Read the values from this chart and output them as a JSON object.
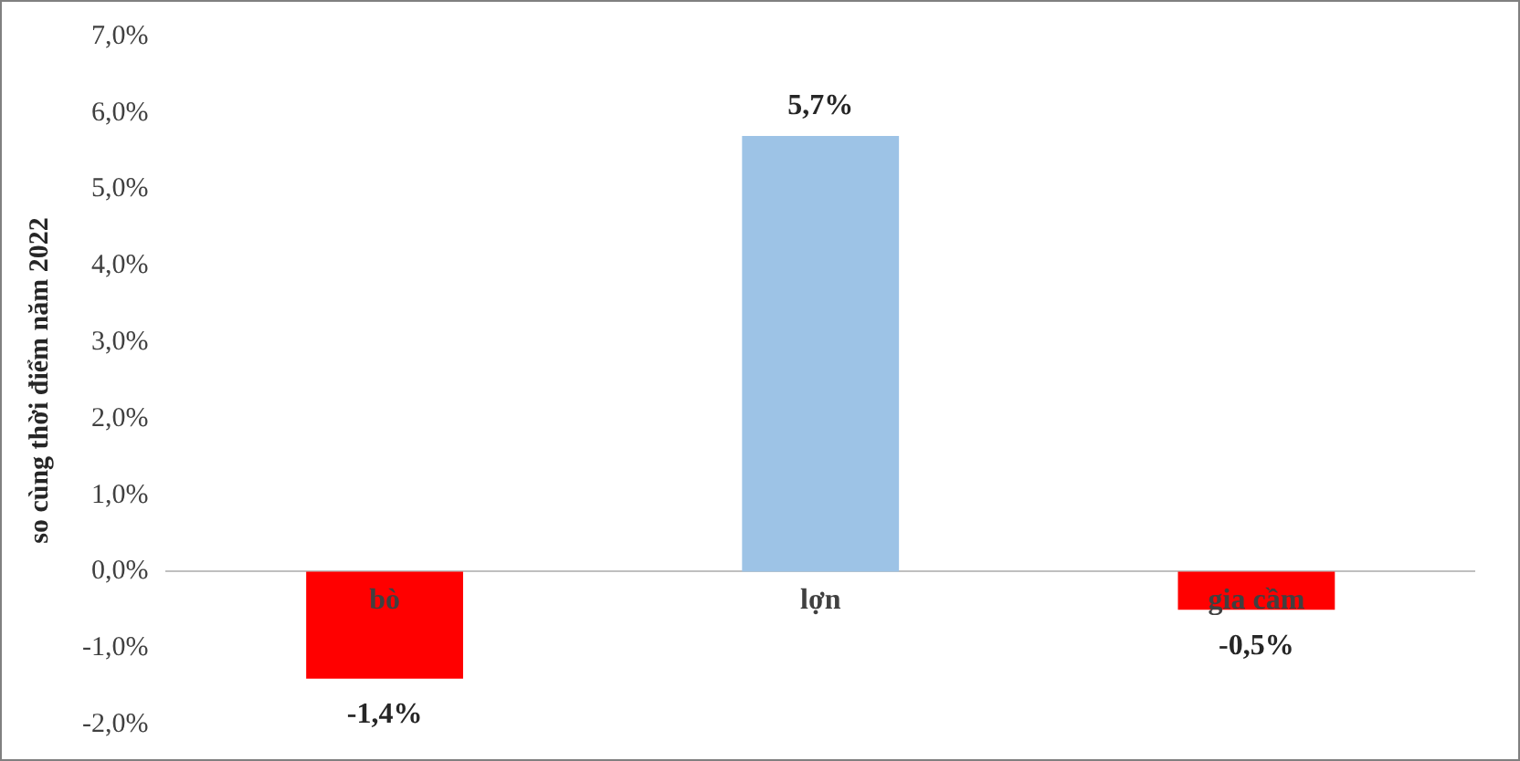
{
  "chart_data": {
    "type": "bar",
    "ylabel": "so cùng thời điểm năm 2022",
    "categories": [
      "bò",
      "lợn",
      "gia cầm"
    ],
    "values": [
      -1.4,
      5.7,
      -0.5
    ],
    "colors": [
      "#ff0000",
      "#9dc3e6",
      "#ff0000"
    ],
    "value_labels": [
      "-1,4%",
      "5,7%",
      "-0,5%"
    ],
    "ylim": [
      -2,
      7
    ],
    "yticks": [
      {
        "value": -2,
        "label": "-2,0%"
      },
      {
        "value": -1,
        "label": "-1,0%"
      },
      {
        "value": 0,
        "label": "0,0%"
      },
      {
        "value": 1,
        "label": "1,0%"
      },
      {
        "value": 2,
        "label": "2,0%"
      },
      {
        "value": 3,
        "label": "3,0%"
      },
      {
        "value": 4,
        "label": "4,0%"
      },
      {
        "value": 5,
        "label": "5,0%"
      },
      {
        "value": 6,
        "label": "6,0%"
      },
      {
        "value": 7,
        "label": "7,0%"
      }
    ],
    "grid": false,
    "legend": false
  }
}
